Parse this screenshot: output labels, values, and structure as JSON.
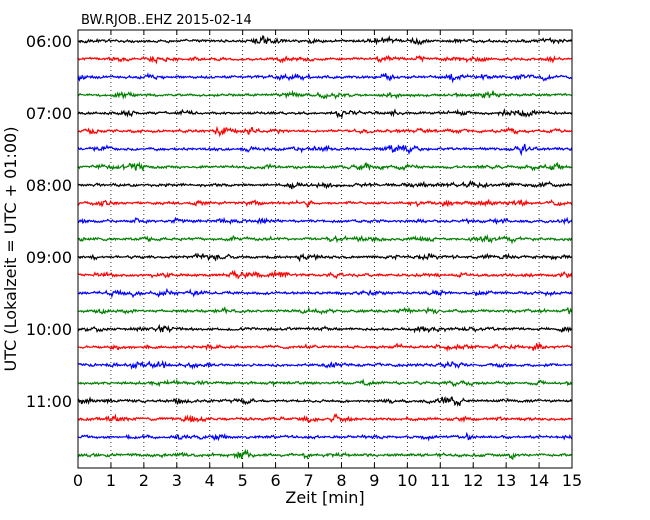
{
  "chart_data": {
    "type": "line",
    "title": "BW.RJOB..EHZ 2015-02-14",
    "xlabel": "Zeit  [min]",
    "ylabel": "UTC (Lokalzeit = UTC + 01:00)",
    "xlim": [
      0,
      15
    ],
    "x_ticks": [
      "0",
      "1",
      "2",
      "3",
      "4",
      "5",
      "6",
      "7",
      "8",
      "9",
      "10",
      "11",
      "12",
      "13",
      "14",
      "15"
    ],
    "y_ticks": [
      "06:00",
      "07:00",
      "08:00",
      "09:00",
      "10:00",
      "11:00"
    ],
    "grid": "vertical dotted",
    "legend": "none",
    "trace_colors": [
      "#000000",
      "#ff0000",
      "#0000ff",
      "#007f00"
    ],
    "series_start_times": [
      "06:00",
      "06:15",
      "06:30",
      "06:45",
      "07:00",
      "07:15",
      "07:30",
      "07:45",
      "08:00",
      "08:15",
      "08:30",
      "08:45",
      "09:00",
      "09:15",
      "09:30",
      "09:45",
      "10:00",
      "10:15",
      "10:30",
      "10:45",
      "11:00",
      "11:15",
      "11:30",
      "11:45"
    ]
  }
}
